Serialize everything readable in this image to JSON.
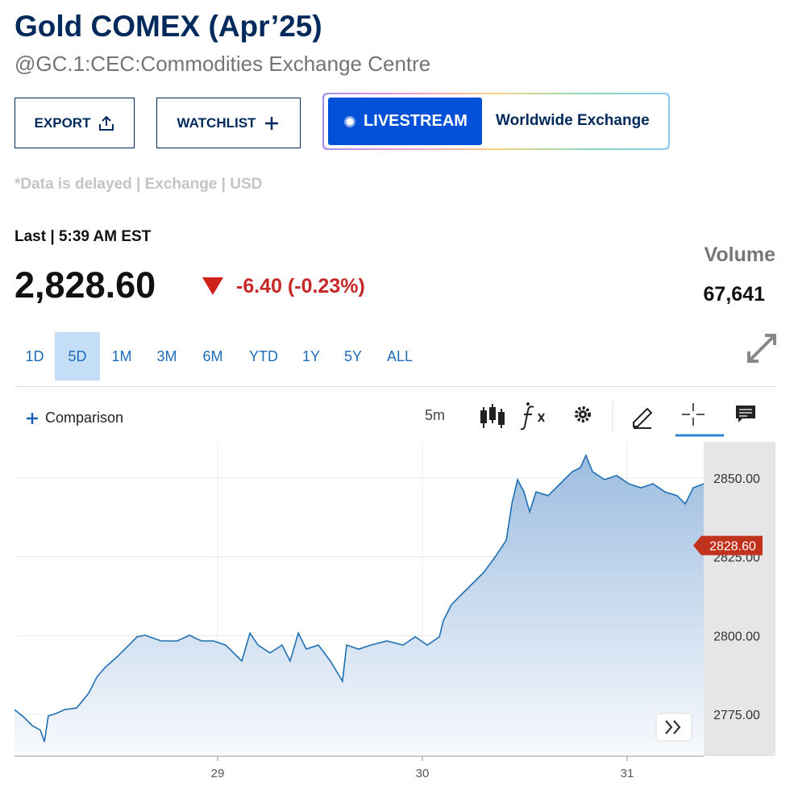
{
  "header": {
    "title": "Gold COMEX (Apr’25)",
    "subtitle": "@GC.1:CEC:Commodities Exchange Centre"
  },
  "buttons": {
    "export": "EXPORT",
    "watchlist": "WATCHLIST",
    "livestream": "LIVESTREAM",
    "exchange": "Worldwide Exchange"
  },
  "disclaimer": "*Data is delayed | Exchange | USD",
  "quote": {
    "last_label": "Last | 5:39 AM EST",
    "price": "2,828.60",
    "change": "-6.40 (-0.23%)",
    "volume_label": "Volume",
    "volume": "67,641"
  },
  "ranges": [
    "1D",
    "5D",
    "1M",
    "3M",
    "6M",
    "YTD",
    "1Y",
    "5Y",
    "ALL"
  ],
  "active_range": 1,
  "toolbar": {
    "comparison": "Comparison",
    "interval": "5m"
  },
  "chart_data": {
    "type": "area",
    "color": "#1f6fb2",
    "x": [
      28.008,
      28.055,
      28.095,
      28.134,
      28.154,
      28.173,
      28.213,
      28.252,
      28.311,
      28.37,
      28.41,
      28.449,
      28.508,
      28.567,
      28.606,
      28.646,
      28.725,
      28.803,
      28.862,
      28.921,
      28.98,
      29.039,
      29.118,
      29.158,
      29.197,
      29.256,
      29.315,
      29.354,
      29.394,
      29.433,
      29.492,
      29.551,
      29.61,
      29.63,
      29.689,
      29.748,
      29.827,
      29.906,
      29.965,
      30.024,
      30.083,
      30.102,
      30.142,
      30.181,
      30.24,
      30.299,
      30.358,
      30.41,
      30.437,
      30.465,
      30.496,
      30.524,
      30.555,
      30.614,
      30.673,
      30.732,
      30.772,
      30.799,
      30.831,
      30.89,
      30.949,
      31.008,
      31.067,
      31.126,
      31.185,
      31.244,
      31.284,
      31.323,
      31.374
    ],
    "values": [
      2776.5,
      2774,
      2771.4,
      2770,
      2766.3,
      2774.5,
      2775.3,
      2776.5,
      2777,
      2781.7,
      2786.8,
      2789.8,
      2793.2,
      2797,
      2799.6,
      2800.1,
      2798.3,
      2798.3,
      2800.1,
      2798.3,
      2798.3,
      2797,
      2791.9,
      2800.8,
      2797,
      2794.5,
      2797,
      2791.9,
      2800.8,
      2795.7,
      2797,
      2791.9,
      2785.5,
      2797,
      2795.7,
      2797,
      2798.3,
      2797,
      2799.6,
      2797,
      2799.6,
      2804.7,
      2809.8,
      2812.4,
      2816.2,
      2820,
      2825.2,
      2830.3,
      2841.8,
      2849.5,
      2845.6,
      2839.3,
      2845.6,
      2844.4,
      2848.2,
      2852,
      2853.3,
      2857.2,
      2852,
      2849.5,
      2850.8,
      2848.2,
      2846.9,
      2848.2,
      2845.6,
      2844.4,
      2841.8,
      2846.9,
      2848.2
    ],
    "xlim": [
      28.008,
      31.374
    ],
    "ylim": [
      2761.7,
      2861.5
    ],
    "xticks": [
      29,
      30,
      31
    ],
    "yticks": [
      {
        "value": 2775,
        "label": "2775.00"
      },
      {
        "value": 2800,
        "label": "2800.00"
      },
      {
        "value": 2825,
        "label": "2825.00"
      },
      {
        "value": 2850,
        "label": "2850.00"
      }
    ],
    "last_price": {
      "value": 2828.6,
      "label": "2828.60"
    },
    "grid": true
  }
}
